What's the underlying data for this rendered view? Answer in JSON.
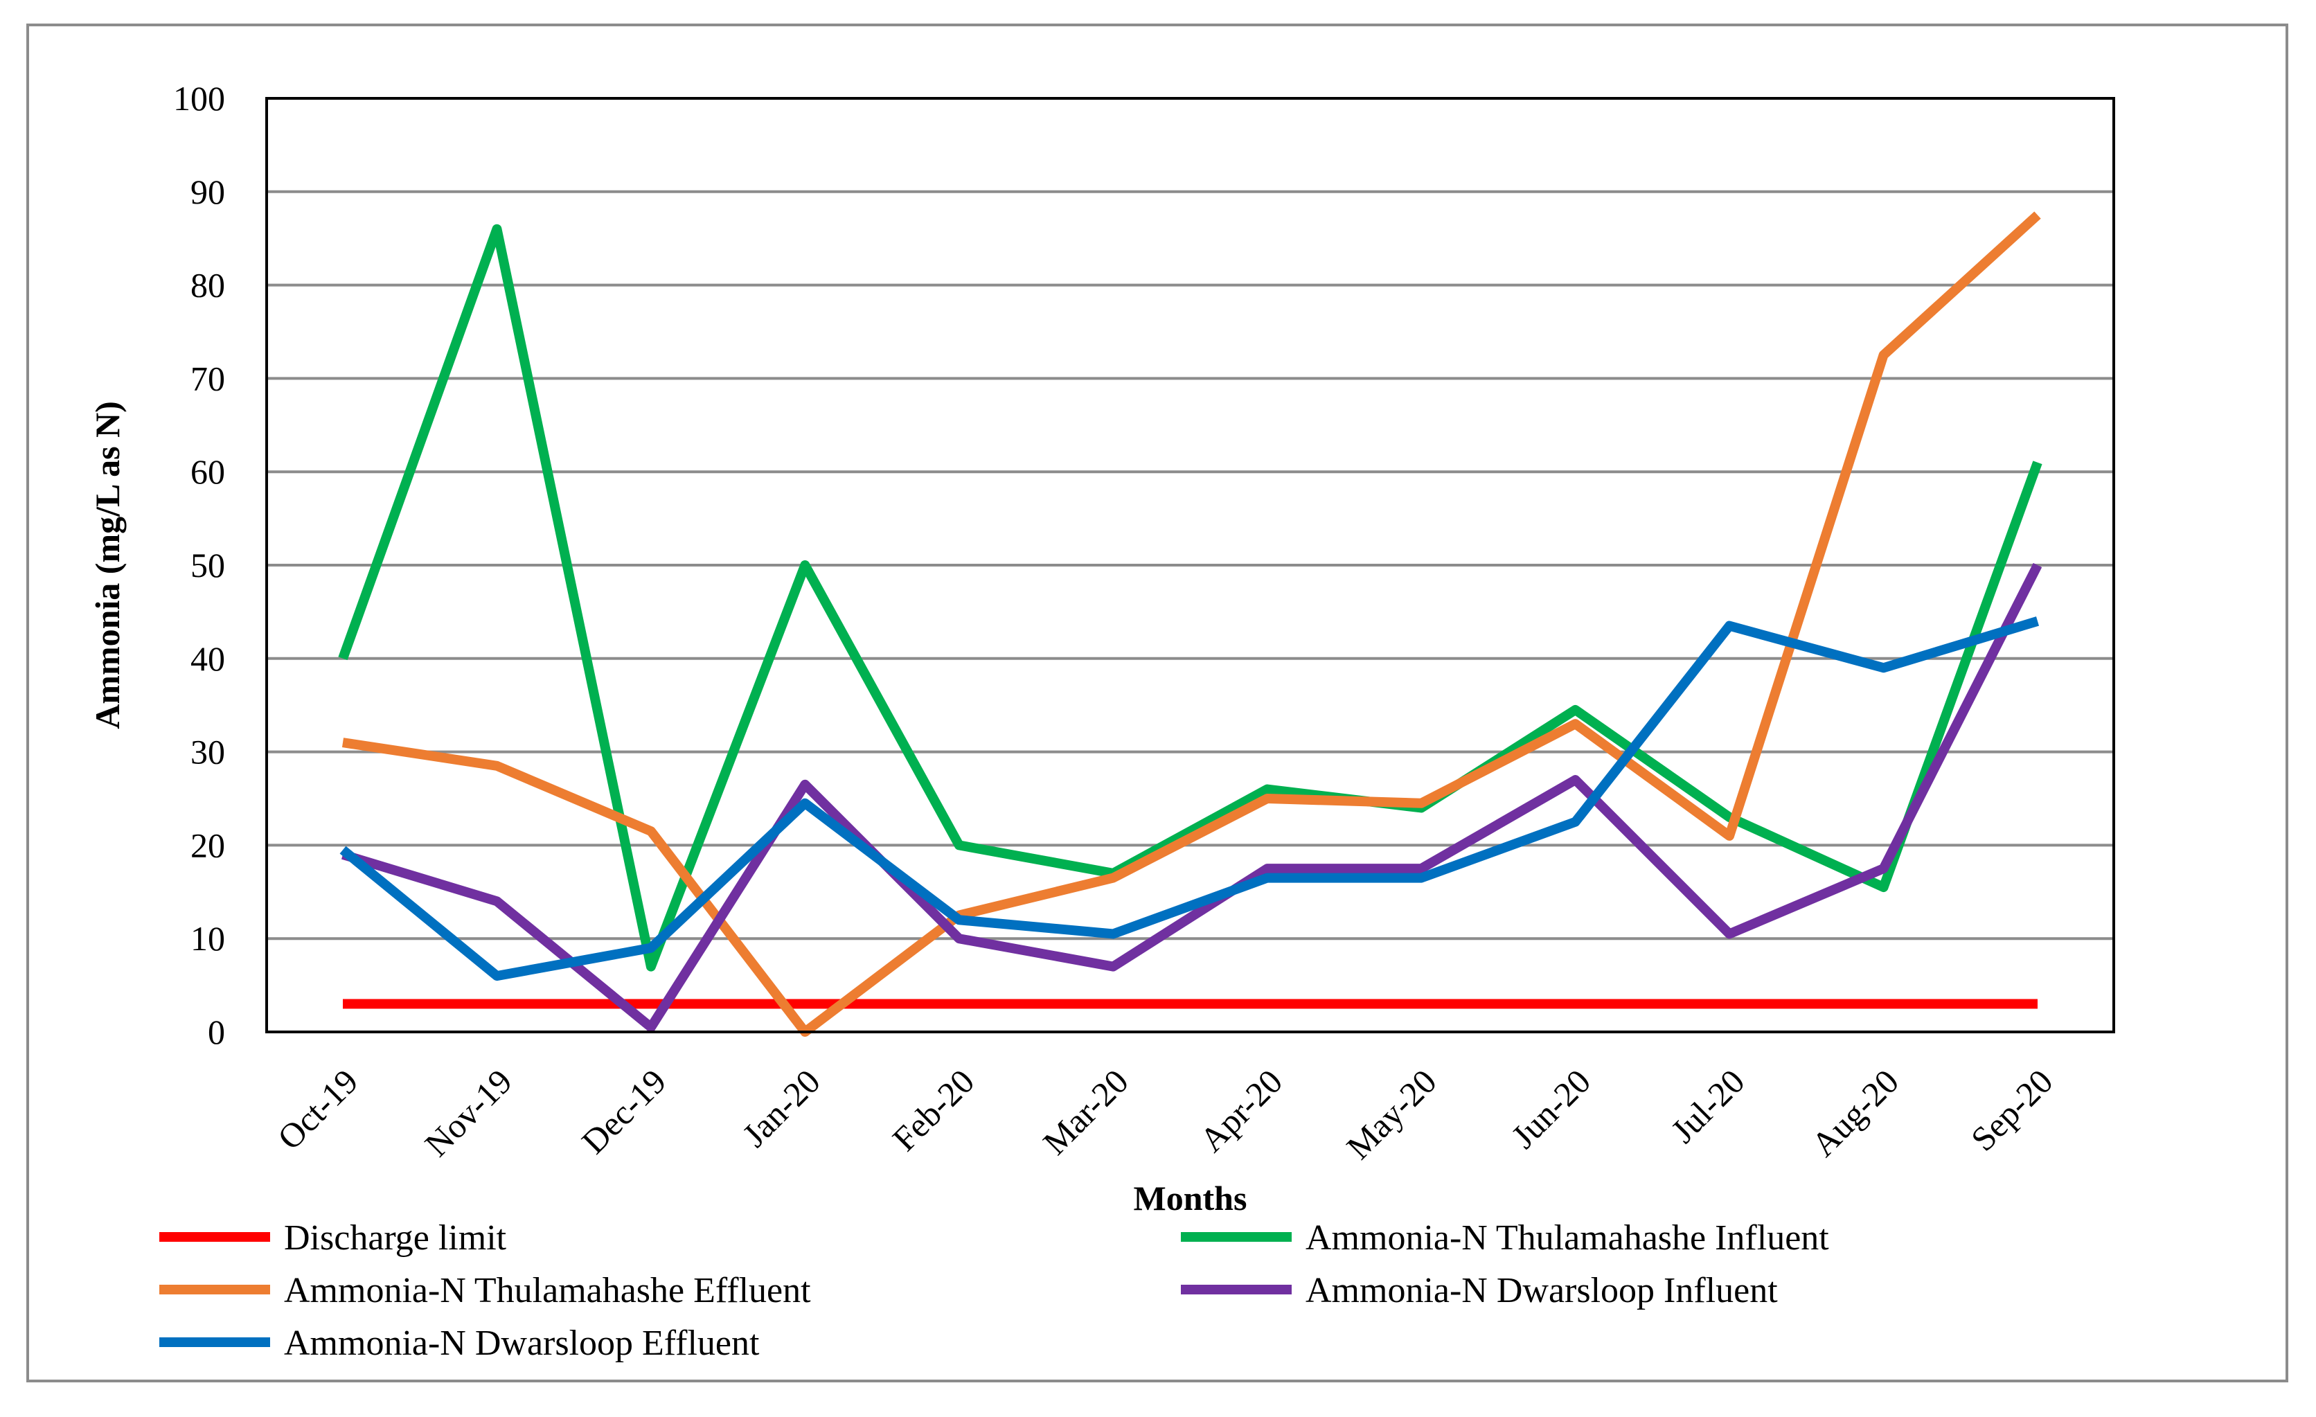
{
  "chart_data": {
    "type": "line",
    "title": "",
    "xlabel": "Months",
    "ylabel": "Ammonia (mg/L as N)",
    "ylim": [
      0,
      100
    ],
    "yticks": [
      0,
      10,
      20,
      30,
      40,
      50,
      60,
      70,
      80,
      90,
      100
    ],
    "grid": true,
    "legend_position": "bottom",
    "categories": [
      "Oct-19",
      "Nov-19",
      "Dec-19",
      "Jan-20",
      "Feb-20",
      "Mar-20",
      "Apr-20",
      "May-20",
      "Jun-20",
      "Jul-20",
      "Aug-20",
      "Sep-20"
    ],
    "series": [
      {
        "name": "Discharge limit",
        "color": "#ff0000",
        "values": [
          3,
          3,
          3,
          3,
          3,
          3,
          3,
          3,
          3,
          3,
          3,
          3
        ]
      },
      {
        "name": "Ammonia-N Thulamahashe Influent",
        "color": "#00b050",
        "values": [
          40,
          86,
          7,
          50,
          20,
          17,
          26,
          24,
          34.5,
          23,
          15.5,
          61
        ]
      },
      {
        "name": "Ammonia-N Thulamahashe Effluent",
        "color": "#ed7d31",
        "values": [
          31,
          28.5,
          21.5,
          0,
          12.5,
          16.5,
          25,
          24.5,
          33,
          21,
          72.5,
          87.5
        ]
      },
      {
        "name": "Ammonia-N Dwarsloop Influent",
        "color": "#7030a0",
        "values": [
          19,
          14,
          0.5,
          26.5,
          10,
          7,
          17.5,
          17.5,
          27,
          10.5,
          17.5,
          50
        ]
      },
      {
        "name": "Ammonia-N Dwarsloop Effluent",
        "color": "#0070c0",
        "values": [
          19.5,
          6,
          9,
          24.5,
          12,
          10.5,
          16.5,
          16.5,
          22.5,
          43.5,
          39,
          44
        ]
      }
    ]
  }
}
